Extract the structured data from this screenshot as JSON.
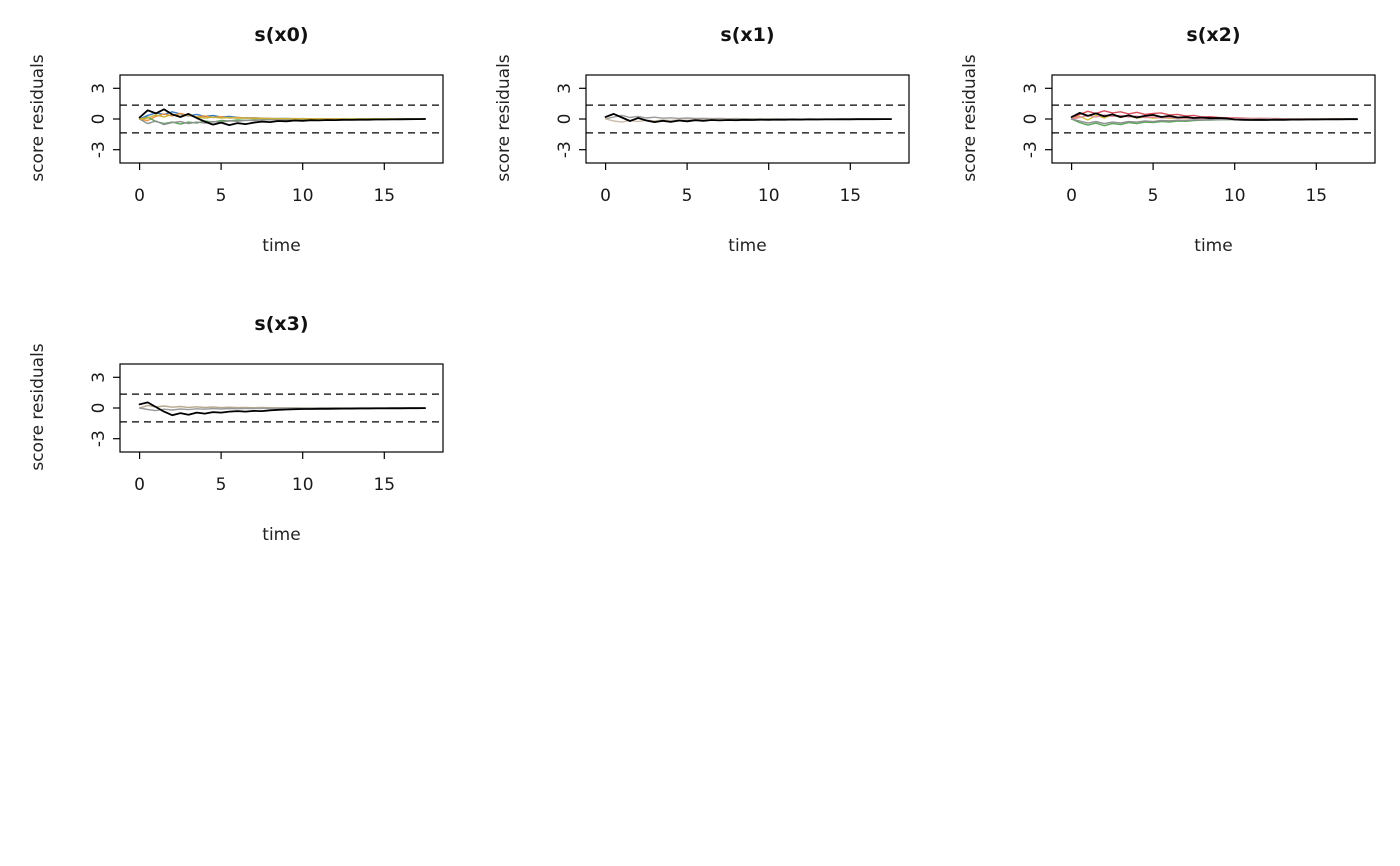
{
  "page": {
    "background": "#ffffff"
  },
  "chart_data": [
    {
      "type": "line",
      "title": "s(x0)",
      "xlabel": "time",
      "ylabel": "score residuals",
      "xlim": [
        -1.2,
        18.6
      ],
      "ylim": [
        -4.3,
        4.3
      ],
      "xticks": [
        0,
        5,
        10,
        15
      ],
      "yticks": [
        -3,
        0,
        3
      ],
      "grid": false,
      "legend": "none",
      "reference_lines": {
        "style": "dashed",
        "color": "#000000",
        "values": [
          1.36,
          -1.36
        ]
      },
      "x": [
        0,
        0.5,
        1,
        1.5,
        2,
        2.5,
        3,
        3.5,
        4,
        4.5,
        5,
        5.5,
        6,
        6.5,
        7,
        7.5,
        8,
        8.5,
        9,
        9.5,
        10,
        10.5,
        11,
        11.5,
        12,
        12.5,
        13,
        13.5,
        14,
        14.5,
        15,
        15.5,
        16,
        16.5,
        17,
        17.5
      ],
      "series": [
        {
          "name": "sim-blue",
          "color": "#3b7dc0",
          "width": 1.4,
          "values": [
            0,
            0.35,
            0.6,
            0.45,
            0.7,
            0.5,
            0.3,
            0.45,
            0.25,
            0.35,
            0.2,
            0.25,
            0.15,
            0.1,
            0.12,
            0.08,
            0.05,
            0.04,
            0.05,
            0.03,
            0.04,
            0.02,
            0.03,
            0.02,
            0.02,
            0.01,
            0.02,
            0.01,
            0.01,
            0.01,
            0,
            0.01,
            0,
            0,
            0,
            0
          ]
        },
        {
          "name": "sim-orange",
          "color": "#e8923a",
          "width": 1.4,
          "values": [
            0,
            -0.15,
            0.25,
            0.5,
            0.3,
            0.55,
            0.35,
            0.2,
            0.3,
            0.15,
            0.22,
            0.1,
            0.15,
            0.08,
            0.1,
            0.05,
            0.06,
            0.04,
            0.03,
            0.04,
            0.02,
            0.03,
            0.02,
            0.01,
            0.02,
            0.01,
            0.01,
            0,
            0.01,
            0,
            0,
            0,
            0,
            0,
            0,
            0
          ]
        },
        {
          "name": "sim-green",
          "color": "#5aa65a",
          "width": 1.4,
          "values": [
            0,
            0.2,
            -0.25,
            -0.45,
            -0.3,
            -0.5,
            -0.3,
            -0.4,
            -0.2,
            -0.3,
            -0.15,
            -0.2,
            -0.1,
            -0.15,
            -0.08,
            -0.1,
            -0.06,
            -0.05,
            -0.04,
            -0.05,
            -0.03,
            -0.04,
            -0.02,
            -0.03,
            -0.02,
            -0.02,
            -0.01,
            -0.01,
            -0.01,
            0,
            -0.01,
            0,
            0,
            0,
            0,
            0
          ]
        },
        {
          "name": "sim-grey",
          "color": "#8f8f8f",
          "width": 1.4,
          "values": [
            0,
            -0.45,
            -0.2,
            -0.55,
            -0.35,
            -0.25,
            -0.45,
            -0.3,
            -0.4,
            -0.25,
            -0.3,
            -0.18,
            -0.22,
            -0.12,
            -0.15,
            -0.1,
            -0.08,
            -0.06,
            -0.07,
            -0.05,
            -0.05,
            -0.04,
            -0.04,
            -0.03,
            -0.03,
            -0.02,
            -0.02,
            -0.02,
            -0.01,
            -0.01,
            -0.01,
            0,
            0,
            0,
            0,
            0
          ]
        },
        {
          "name": "sim-yellow",
          "color": "#c9b23a",
          "width": 1.4,
          "values": [
            0,
            0.1,
            0.4,
            0.2,
            0.45,
            0.25,
            0.4,
            0.2,
            0.1,
            0.18,
            0.1,
            0.14,
            0.08,
            0.1,
            0.05,
            0.07,
            0.04,
            0.03,
            0.04,
            0.02,
            0.03,
            0.02,
            0.02,
            0.01,
            0.01,
            0.01,
            0.01,
            0,
            0.01,
            0,
            0,
            0,
            0,
            0,
            0,
            0
          ]
        },
        {
          "name": "observed",
          "color": "#000000",
          "width": 1.8,
          "values": [
            0.15,
            0.85,
            0.55,
            0.95,
            0.45,
            0.2,
            0.5,
            0.1,
            -0.25,
            -0.55,
            -0.35,
            -0.6,
            -0.4,
            -0.5,
            -0.35,
            -0.25,
            -0.3,
            -0.2,
            -0.22,
            -0.15,
            -0.18,
            -0.12,
            -0.14,
            -0.1,
            -0.11,
            -0.08,
            -0.09,
            -0.07,
            -0.07,
            -0.05,
            -0.05,
            -0.04,
            -0.03,
            -0.02,
            -0.01,
            0
          ]
        }
      ]
    },
    {
      "type": "line",
      "title": "s(x1)",
      "xlabel": "time",
      "ylabel": "score residuals",
      "xlim": [
        -1.2,
        18.6
      ],
      "ylim": [
        -4.3,
        4.3
      ],
      "xticks": [
        0,
        5,
        10,
        15
      ],
      "yticks": [
        -3,
        0,
        3
      ],
      "grid": false,
      "legend": "none",
      "reference_lines": {
        "style": "dashed",
        "color": "#000000",
        "values": [
          1.36,
          -1.36
        ]
      },
      "x": [
        0,
        0.5,
        1,
        1.5,
        2,
        2.5,
        3,
        3.5,
        4,
        4.5,
        5,
        5.5,
        6,
        6.5,
        7,
        7.5,
        8,
        8.5,
        9,
        9.5,
        10,
        10.5,
        11,
        11.5,
        12,
        12.5,
        13,
        13.5,
        14,
        14.5,
        15,
        15.5,
        16,
        16.5,
        17,
        17.5
      ],
      "series": [
        {
          "name": "sim-grey",
          "color": "#9a9a9a",
          "width": 1.4,
          "values": [
            0,
            0.2,
            0.35,
            0.15,
            0.25,
            0.1,
            0.18,
            0.08,
            0.12,
            0.06,
            0.1,
            0.05,
            0.07,
            0.04,
            0.05,
            0.03,
            0.04,
            0.03,
            0.03,
            0.02,
            0.02,
            0.02,
            0.01,
            0.01,
            0.01,
            0.01,
            0.01,
            0,
            0,
            0,
            0,
            0,
            0,
            0,
            0,
            0
          ]
        },
        {
          "name": "sim-tan",
          "color": "#c9bca7",
          "width": 1.4,
          "values": [
            0,
            -0.2,
            -0.3,
            -0.15,
            -0.25,
            -0.12,
            -0.2,
            -0.1,
            -0.15,
            -0.08,
            -0.12,
            -0.06,
            -0.08,
            -0.05,
            -0.06,
            -0.04,
            -0.05,
            -0.03,
            -0.04,
            -0.02,
            -0.03,
            -0.02,
            -0.02,
            -0.01,
            -0.02,
            -0.01,
            -0.01,
            -0.01,
            0,
            -0.01,
            0,
            0,
            0,
            0,
            0,
            0
          ]
        },
        {
          "name": "observed",
          "color": "#000000",
          "width": 1.8,
          "values": [
            0.2,
            0.5,
            0.15,
            -0.2,
            0.1,
            -0.15,
            -0.3,
            -0.18,
            -0.28,
            -0.15,
            -0.22,
            -0.12,
            -0.18,
            -0.1,
            -0.14,
            -0.1,
            -0.12,
            -0.08,
            -0.1,
            -0.07,
            -0.08,
            -0.06,
            -0.07,
            -0.05,
            -0.06,
            -0.04,
            -0.05,
            -0.04,
            -0.04,
            -0.03,
            -0.03,
            -0.02,
            -0.02,
            -0.02,
            -0.01,
            -0.01
          ]
        }
      ]
    },
    {
      "type": "line",
      "title": "s(x2)",
      "xlabel": "time",
      "ylabel": "score residuals",
      "xlim": [
        -1.2,
        18.6
      ],
      "ylim": [
        -4.3,
        4.3
      ],
      "xticks": [
        0,
        5,
        10,
        15
      ],
      "yticks": [
        -3,
        0,
        3
      ],
      "grid": false,
      "legend": "none",
      "reference_lines": {
        "style": "dashed",
        "color": "#000000",
        "values": [
          1.36,
          -1.36
        ]
      },
      "x": [
        0,
        0.5,
        1,
        1.5,
        2,
        2.5,
        3,
        3.5,
        4,
        4.5,
        5,
        5.5,
        6,
        6.5,
        7,
        7.5,
        8,
        8.5,
        9,
        9.5,
        10,
        10.5,
        11,
        11.5,
        12,
        12.5,
        13,
        13.5,
        14,
        14.5,
        15,
        15.5,
        16,
        16.5,
        17,
        17.5
      ],
      "series": [
        {
          "name": "sim-red",
          "color": "#d94f5c",
          "width": 1.4,
          "values": [
            0,
            0.45,
            0.75,
            0.55,
            0.8,
            0.6,
            0.7,
            0.5,
            0.65,
            0.45,
            0.55,
            0.6,
            0.4,
            0.45,
            0.3,
            0.35,
            0.2,
            0.22,
            0.15,
            0.12,
            0.1,
            0.08,
            0.06,
            0.05,
            0.05,
            0.04,
            0.03,
            0.03,
            0.02,
            0.02,
            0.02,
            0.01,
            0.01,
            0.01,
            0,
            0
          ]
        },
        {
          "name": "sim-green",
          "color": "#5aa65a",
          "width": 1.4,
          "values": [
            0,
            -0.35,
            -0.6,
            -0.4,
            -0.65,
            -0.45,
            -0.55,
            -0.35,
            -0.45,
            -0.3,
            -0.35,
            -0.25,
            -0.3,
            -0.2,
            -0.22,
            -0.15,
            -0.12,
            -0.1,
            -0.08,
            -0.07,
            -0.06,
            -0.05,
            -0.04,
            -0.04,
            -0.03,
            -0.03,
            -0.02,
            -0.02,
            -0.02,
            -0.01,
            -0.01,
            -0.01,
            0,
            0,
            0,
            0
          ]
        },
        {
          "name": "sim-yellow",
          "color": "#d4c13e",
          "width": 1.4,
          "values": [
            0,
            0.25,
            -0.1,
            0.35,
            0.1,
            0.4,
            0.15,
            0.3,
            0.1,
            0.2,
            0.08,
            0.15,
            0.06,
            0.1,
            0.05,
            0.08,
            0.04,
            0.05,
            0.03,
            0.04,
            0.02,
            0.03,
            0.02,
            0.02,
            0.01,
            0.01,
            0.01,
            0.01,
            0,
            0,
            0,
            0,
            0,
            0,
            0,
            0
          ]
        },
        {
          "name": "sim-pink",
          "color": "#e08ca0",
          "width": 1.4,
          "values": [
            0,
            0.15,
            0.35,
            0.2,
            0.4,
            0.25,
            0.35,
            0.2,
            0.28,
            0.15,
            0.2,
            0.12,
            0.15,
            0.08,
            0.1,
            0.06,
            0.07,
            0.05,
            0.05,
            0.04,
            0.03,
            0.03,
            0.02,
            0.02,
            0.02,
            0.01,
            0.01,
            0.01,
            0,
            0,
            0,
            0,
            0,
            0,
            0,
            0
          ]
        },
        {
          "name": "sim-grey",
          "color": "#8f8f8f",
          "width": 1.4,
          "values": [
            0,
            -0.2,
            -0.4,
            -0.25,
            -0.45,
            -0.3,
            -0.38,
            -0.25,
            -0.3,
            -0.2,
            -0.25,
            -0.15,
            -0.18,
            -0.12,
            -0.14,
            -0.08,
            -0.1,
            -0.06,
            -0.07,
            -0.05,
            -0.05,
            -0.04,
            -0.03,
            -0.03,
            -0.02,
            -0.02,
            -0.02,
            -0.01,
            -0.01,
            -0.01,
            0,
            0,
            0,
            0,
            0,
            0
          ]
        },
        {
          "name": "observed",
          "color": "#000000",
          "width": 1.8,
          "values": [
            0.2,
            0.6,
            0.3,
            0.55,
            0.25,
            0.45,
            0.2,
            0.35,
            0.15,
            0.3,
            0.4,
            0.2,
            0.3,
            0.15,
            0.2,
            0.1,
            0.15,
            0.08,
            0.1,
            0.06,
            -0.05,
            -0.08,
            -0.1,
            -0.08,
            -0.1,
            -0.07,
            -0.08,
            -0.06,
            -0.06,
            -0.05,
            -0.05,
            -0.04,
            -0.03,
            -0.03,
            -0.02,
            -0.02
          ]
        }
      ]
    },
    {
      "type": "line",
      "title": "s(x3)",
      "xlabel": "time",
      "ylabel": "score residuals",
      "xlim": [
        -1.2,
        18.6
      ],
      "ylim": [
        -4.3,
        4.3
      ],
      "xticks": [
        0,
        5,
        10,
        15
      ],
      "yticks": [
        -3,
        0,
        3
      ],
      "grid": false,
      "legend": "none",
      "reference_lines": {
        "style": "dashed",
        "color": "#000000",
        "values": [
          1.36,
          -1.36
        ]
      },
      "x": [
        0,
        0.5,
        1,
        1.5,
        2,
        2.5,
        3,
        3.5,
        4,
        4.5,
        5,
        5.5,
        6,
        6.5,
        7,
        7.5,
        8,
        8.5,
        9,
        9.5,
        10,
        10.5,
        11,
        11.5,
        12,
        12.5,
        13,
        13.5,
        14,
        14.5,
        15,
        15.5,
        16,
        16.5,
        17,
        17.5
      ],
      "series": [
        {
          "name": "sim-tan",
          "color": "#b7a98f",
          "width": 1.4,
          "values": [
            0,
            0.25,
            0.1,
            0.2,
            0.08,
            0.15,
            0.06,
            0.12,
            0.05,
            0.1,
            0.04,
            0.08,
            0.04,
            0.06,
            0.03,
            0.05,
            0.03,
            0.02,
            0.02,
            0.02,
            0.01,
            0.01,
            0.01,
            0.01,
            0.01,
            0,
            0,
            0,
            0,
            0,
            0,
            0,
            0,
            0,
            0,
            0
          ]
        },
        {
          "name": "sim-grey",
          "color": "#9a9a9a",
          "width": 1.4,
          "values": [
            0,
            -0.15,
            -0.25,
            -0.12,
            -0.2,
            -0.1,
            -0.16,
            -0.08,
            -0.12,
            -0.06,
            -0.1,
            -0.05,
            -0.08,
            -0.04,
            -0.06,
            -0.03,
            -0.04,
            -0.03,
            -0.03,
            -0.02,
            -0.02,
            -0.02,
            -0.01,
            -0.01,
            -0.01,
            -0.01,
            0,
            0,
            0,
            0,
            0,
            0,
            0,
            0,
            0,
            0
          ]
        },
        {
          "name": "observed",
          "color": "#000000",
          "width": 1.8,
          "values": [
            0.35,
            0.55,
            0.1,
            -0.35,
            -0.7,
            -0.5,
            -0.65,
            -0.45,
            -0.55,
            -0.4,
            -0.45,
            -0.35,
            -0.3,
            -0.35,
            -0.28,
            -0.3,
            -0.22,
            -0.18,
            -0.15,
            -0.12,
            -0.1,
            -0.1,
            -0.08,
            -0.08,
            -0.07,
            -0.06,
            -0.06,
            -0.05,
            -0.05,
            -0.04,
            -0.04,
            -0.03,
            -0.03,
            -0.02,
            -0.02,
            -0.01
          ]
        }
      ]
    }
  ]
}
